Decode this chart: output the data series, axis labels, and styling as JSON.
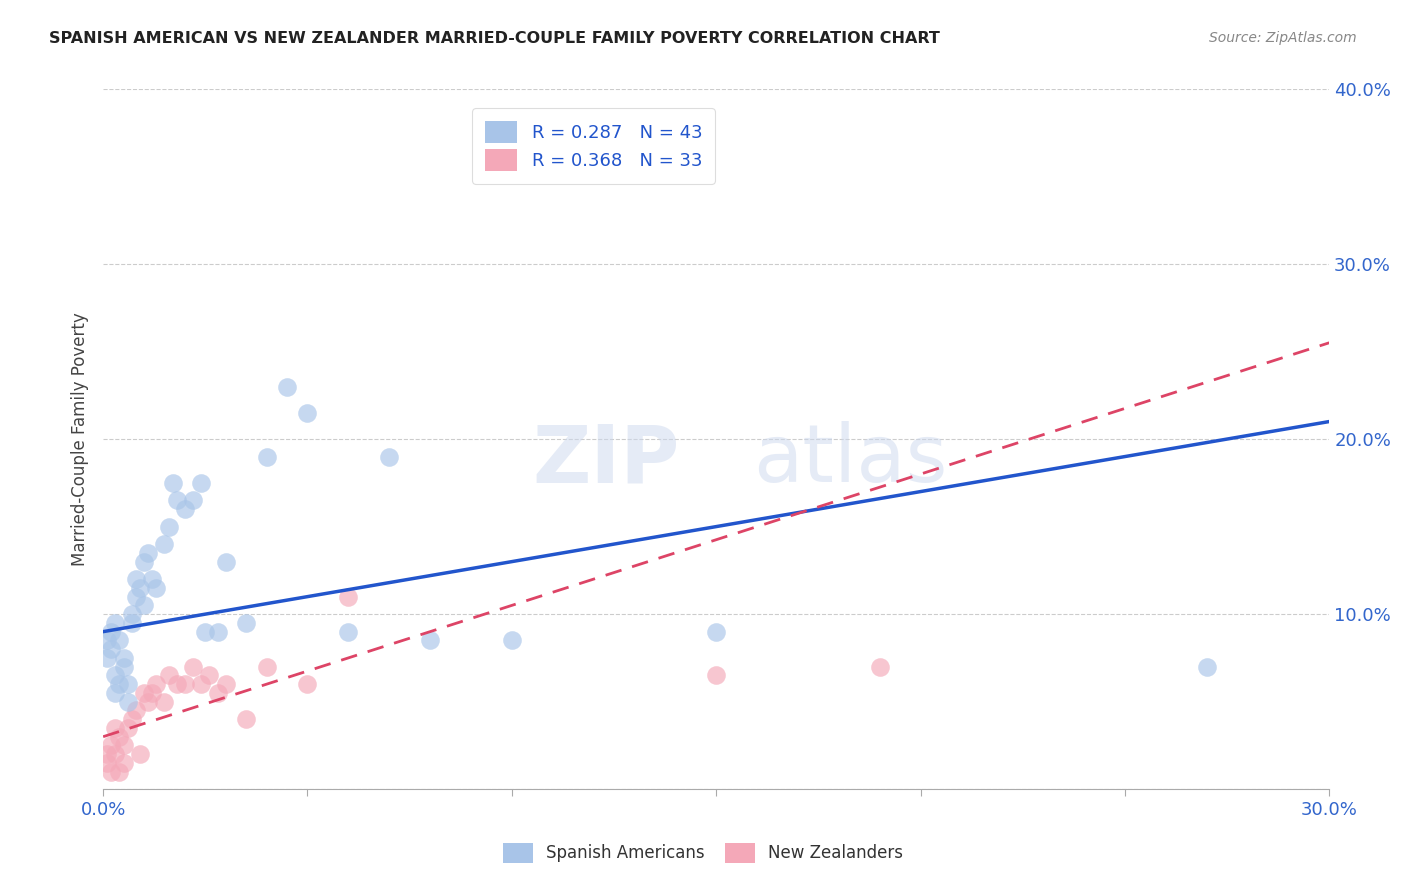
{
  "title": "SPANISH AMERICAN VS NEW ZEALANDER MARRIED-COUPLE FAMILY POVERTY CORRELATION CHART",
  "source": "Source: ZipAtlas.com",
  "ylabel": "Married-Couple Family Poverty",
  "xlim": [
    0.0,
    0.3
  ],
  "ylim": [
    0.0,
    0.4
  ],
  "xticks": [
    0.0,
    0.05,
    0.1,
    0.15,
    0.2,
    0.25,
    0.3
  ],
  "yticks": [
    0.0,
    0.1,
    0.2,
    0.3,
    0.4
  ],
  "xtick_labels": [
    "0.0%",
    "",
    "",
    "",
    "",
    "",
    "30.0%"
  ],
  "ytick_labels": [
    "",
    "10.0%",
    "20.0%",
    "30.0%",
    "40.0%"
  ],
  "r_spanish": 0.287,
  "n_spanish": 43,
  "r_nz": 0.368,
  "n_nz": 33,
  "blue_color": "#a8c4e8",
  "pink_color": "#f4a8b8",
  "blue_line_color": "#2255cc",
  "pink_line_color": "#dd4466",
  "watermark_zip": "ZIP",
  "watermark_atlas": "atlas",
  "legend_label_1": "Spanish Americans",
  "legend_label_2": "New Zealanders",
  "spanish_x": [
    0.001,
    0.001,
    0.002,
    0.002,
    0.003,
    0.003,
    0.003,
    0.004,
    0.004,
    0.005,
    0.005,
    0.006,
    0.006,
    0.007,
    0.007,
    0.008,
    0.008,
    0.009,
    0.01,
    0.01,
    0.011,
    0.012,
    0.013,
    0.015,
    0.016,
    0.017,
    0.018,
    0.02,
    0.022,
    0.024,
    0.025,
    0.028,
    0.03,
    0.035,
    0.04,
    0.045,
    0.05,
    0.06,
    0.07,
    0.08,
    0.1,
    0.15,
    0.27
  ],
  "spanish_y": [
    0.085,
    0.075,
    0.09,
    0.08,
    0.095,
    0.065,
    0.055,
    0.085,
    0.06,
    0.075,
    0.07,
    0.06,
    0.05,
    0.1,
    0.095,
    0.12,
    0.11,
    0.115,
    0.105,
    0.13,
    0.135,
    0.12,
    0.115,
    0.14,
    0.15,
    0.175,
    0.165,
    0.16,
    0.165,
    0.175,
    0.09,
    0.09,
    0.13,
    0.095,
    0.19,
    0.23,
    0.215,
    0.09,
    0.19,
    0.085,
    0.085,
    0.09,
    0.07
  ],
  "nz_x": [
    0.001,
    0.001,
    0.002,
    0.002,
    0.003,
    0.003,
    0.004,
    0.004,
    0.005,
    0.005,
    0.006,
    0.007,
    0.008,
    0.009,
    0.01,
    0.011,
    0.012,
    0.013,
    0.015,
    0.016,
    0.018,
    0.02,
    0.022,
    0.024,
    0.026,
    0.028,
    0.03,
    0.035,
    0.04,
    0.05,
    0.06,
    0.15,
    0.19
  ],
  "nz_y": [
    0.02,
    0.015,
    0.025,
    0.01,
    0.035,
    0.02,
    0.01,
    0.03,
    0.025,
    0.015,
    0.035,
    0.04,
    0.045,
    0.02,
    0.055,
    0.05,
    0.055,
    0.06,
    0.05,
    0.065,
    0.06,
    0.06,
    0.07,
    0.06,
    0.065,
    0.055,
    0.06,
    0.04,
    0.07,
    0.06,
    0.11,
    0.065,
    0.07
  ],
  "blue_line_x0": 0.0,
  "blue_line_y0": 0.09,
  "blue_line_x1": 0.3,
  "blue_line_y1": 0.21,
  "pink_line_x0": 0.0,
  "pink_line_y0": 0.03,
  "pink_line_x1": 0.3,
  "pink_line_y1": 0.255
}
